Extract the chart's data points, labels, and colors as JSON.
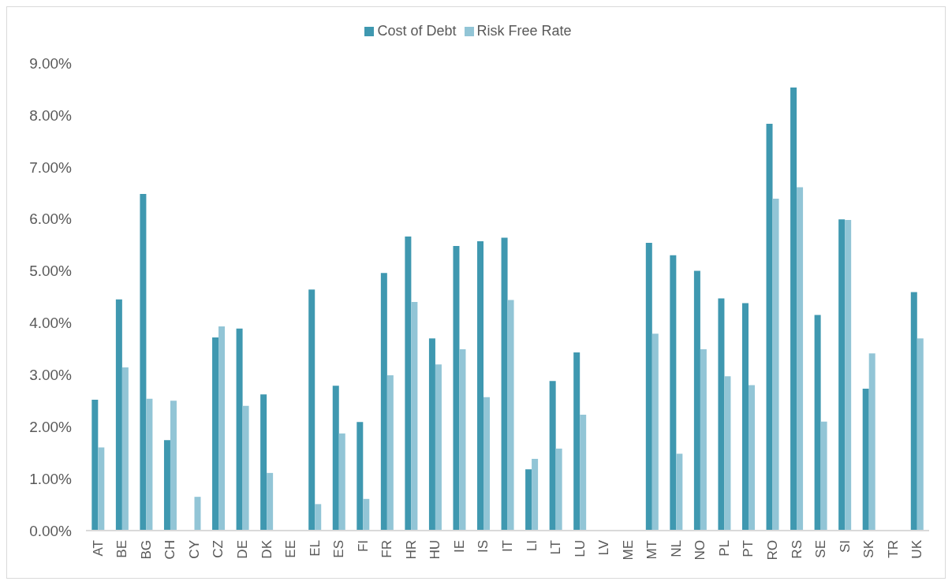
{
  "chart_data": {
    "type": "bar",
    "categories": [
      "AT",
      "BE",
      "BG",
      "CH",
      "CY",
      "CZ",
      "DE",
      "DK",
      "EE",
      "EL",
      "ES",
      "FI",
      "FR",
      "HR",
      "HU",
      "IE",
      "IS",
      "IT",
      "LI",
      "LT",
      "LU",
      "LV",
      "ME",
      "MT",
      "NL",
      "NO",
      "PL",
      "PT",
      "RO",
      "RS",
      "SE",
      "SI",
      "SK",
      "TR",
      "UK"
    ],
    "series": [
      {
        "name": "Cost of Debt",
        "color": "#3f98b0",
        "values": [
          2.52,
          4.45,
          6.48,
          1.74,
          null,
          3.72,
          3.89,
          2.62,
          null,
          4.64,
          2.79,
          2.09,
          4.96,
          5.66,
          3.7,
          5.48,
          5.57,
          5.64,
          1.18,
          2.88,
          3.43,
          null,
          null,
          5.54,
          5.3,
          5.0,
          4.47,
          4.38,
          7.83,
          8.53,
          4.15,
          5.99,
          2.73,
          null,
          4.59
        ]
      },
      {
        "name": "Risk Free Rate",
        "color": "#92c5d6",
        "values": [
          1.6,
          3.14,
          2.54,
          2.5,
          0.65,
          3.93,
          2.4,
          1.11,
          null,
          0.51,
          1.87,
          0.61,
          2.99,
          4.4,
          3.2,
          3.49,
          2.57,
          4.44,
          1.38,
          1.58,
          2.23,
          null,
          null,
          3.79,
          1.48,
          3.49,
          2.97,
          2.8,
          6.39,
          6.61,
          2.1,
          5.98,
          3.41,
          null,
          3.7
        ]
      }
    ],
    "ylim": [
      0,
      9
    ],
    "yticks": [
      {
        "value": 0,
        "label": "0.00%"
      },
      {
        "value": 1,
        "label": "1.00%"
      },
      {
        "value": 2,
        "label": "2.00%"
      },
      {
        "value": 3,
        "label": "3.00%"
      },
      {
        "value": 4,
        "label": "4.00%"
      },
      {
        "value": 5,
        "label": "5.00%"
      },
      {
        "value": 6,
        "label": "6.00%"
      },
      {
        "value": 7,
        "label": "7.00%"
      },
      {
        "value": 8,
        "label": "8.00%"
      },
      {
        "value": 9,
        "label": "9.00%"
      }
    ],
    "grid": false,
    "legend": "top"
  }
}
